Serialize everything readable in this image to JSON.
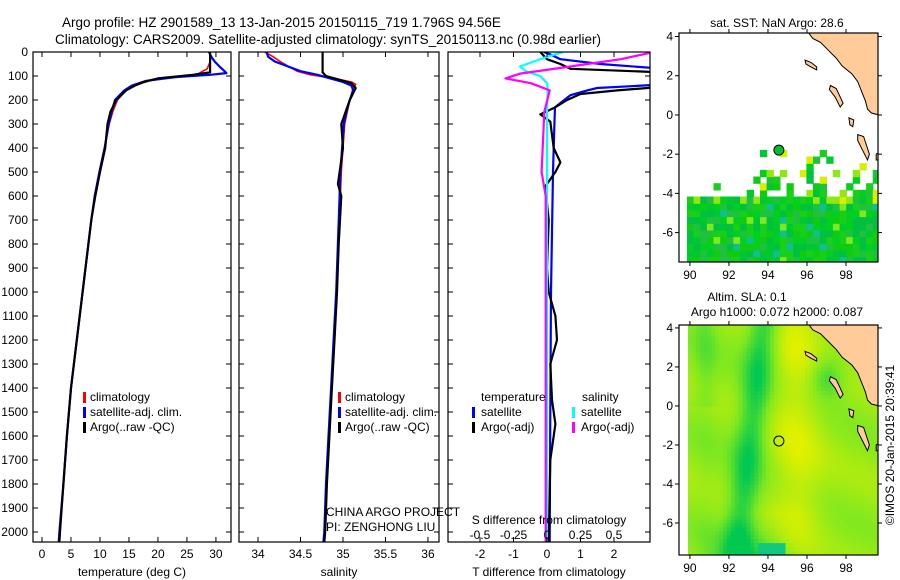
{
  "title_line1": "Argo profile: HZ 2901589_13 13-Jan-2015 20150115_719 1.796S 94.56E",
  "title_line2": "Climatology: CARS2009. Satellite-adjusted climatology: synTS_20150113.nc (0.98d earlier)",
  "credit_line1": "CHINA ARGO PROJECT",
  "credit_line2": "PI: ZENGHONG LIU",
  "timestamp": "©IMOS 20-Jan-2015 20:39:41",
  "colors": {
    "climatology": "#ff0000",
    "satellite": "#0000ff",
    "argo": "#000000",
    "sal_satellite": "#00ffff",
    "sal_argo": "#ff00ff",
    "land": "#ffcc99",
    "sla_low": "#00c850",
    "sla_mid": "#80e820",
    "sla_high": "#e0f000"
  },
  "chart_data": [
    {
      "type": "line",
      "title": "",
      "xlabel": "temperature (deg C)",
      "ylabel": "",
      "xlim": [
        -1.55,
        32.6
      ],
      "ylim": [
        2040,
        0
      ],
      "xticks": [
        0,
        5,
        10,
        15,
        20,
        25,
        30
      ],
      "yticks": [
        0,
        100,
        200,
        300,
        400,
        500,
        600,
        700,
        800,
        900,
        1000,
        1100,
        1200,
        1300,
        1400,
        1500,
        1600,
        1700,
        1800,
        1900,
        2000
      ],
      "legend": [
        {
          "label": "climatology",
          "color": "#ff0000"
        },
        {
          "label": "satellite-adj. clim.",
          "color": "#0000ff"
        },
        {
          "label": "Argo(..raw -QC)",
          "color": "#000000"
        }
      ],
      "series": [
        {
          "name": "climatology",
          "color": "#ff0000",
          "depth": [
            0,
            40,
            70,
            90,
            100,
            110,
            120,
            140,
            160,
            200,
            250,
            300,
            400,
            500,
            600,
            700,
            800,
            900,
            1000,
            1200,
            1400,
            1600,
            1800,
            2000,
            2040
          ],
          "x": [
            29.0,
            29.0,
            28.5,
            27.0,
            25.0,
            21.0,
            18.5,
            16.0,
            14.5,
            13.0,
            12.2,
            11.6,
            10.8,
            9.9,
            9.1,
            8.5,
            8.0,
            7.5,
            7.0,
            6.0,
            5.0,
            4.3,
            3.7,
            3.0,
            2.9
          ]
        },
        {
          "name": "satellite-adj. clim.",
          "color": "#0000ff",
          "depth": [
            0,
            20,
            40,
            60,
            80,
            88,
            95,
            105,
            120,
            140,
            160,
            200,
            250,
            300,
            400,
            500,
            600,
            700,
            800,
            900,
            1000,
            1200,
            1400,
            1600,
            1800,
            2000,
            2040
          ],
          "x": [
            28.8,
            29.2,
            29.8,
            30.6,
            31.5,
            31.8,
            29.0,
            23.0,
            18.0,
            15.5,
            14.2,
            12.6,
            12.0,
            11.5,
            10.8,
            9.9,
            9.1,
            8.5,
            8.0,
            7.5,
            7.0,
            6.0,
            5.0,
            4.3,
            3.7,
            3.0,
            2.9
          ]
        },
        {
          "name": "Argo(..raw -QC)",
          "color": "#000000",
          "depth": [
            0,
            85,
            95,
            110,
            125,
            140,
            160,
            200,
            250,
            300,
            400,
            500,
            600,
            700,
            800,
            900,
            1000,
            1200,
            1400,
            1600,
            1800,
            2000,
            2040
          ],
          "x": [
            29.0,
            29.0,
            26.0,
            20.0,
            17.5,
            16.0,
            14.5,
            12.8,
            11.8,
            11.3,
            10.9,
            10.0,
            9.2,
            8.5,
            8.0,
            7.5,
            7.0,
            6.0,
            5.0,
            4.3,
            3.7,
            3.1,
            3.0
          ]
        }
      ]
    },
    {
      "type": "line",
      "xlabel": "salinity",
      "xlim": [
        33.776,
        36.13
      ],
      "ylim": [
        2040,
        0
      ],
      "xticks": [
        34,
        34.5,
        35,
        35.5,
        36
      ],
      "legend": [
        {
          "label": "climatology",
          "color": "#ff0000"
        },
        {
          "label": "satellite-adj. clim.",
          "color": "#0000ff"
        },
        {
          "label": "Argo(..raw -QC)",
          "color": "#000000"
        }
      ],
      "series": [
        {
          "name": "climatology",
          "color": "#ff0000",
          "depth": [
            0,
            20,
            40,
            60,
            80,
            95,
            110,
            125,
            135,
            150,
            200,
            250,
            300,
            400,
            500,
            600,
            800,
            1000,
            1200,
            1400,
            1600,
            1800,
            2000,
            2040
          ],
          "x": [
            34.08,
            34.18,
            34.26,
            34.36,
            34.46,
            34.62,
            34.9,
            35.1,
            35.15,
            35.12,
            35.08,
            35.05,
            35.02,
            35.0,
            34.98,
            34.97,
            34.95,
            34.93,
            34.9,
            34.87,
            34.84,
            34.81,
            34.79,
            34.78
          ]
        },
        {
          "name": "satellite-adj. clim.",
          "color": "#0000ff",
          "depth": [
            0,
            20,
            40,
            60,
            80,
            95,
            110,
            125,
            140,
            160,
            200,
            250,
            300,
            400,
            500,
            600,
            800,
            1000,
            1200,
            1400,
            1600,
            1800,
            2000,
            2040
          ],
          "x": [
            34.1,
            34.12,
            34.2,
            34.35,
            34.5,
            34.7,
            34.85,
            35.0,
            35.1,
            35.12,
            35.08,
            35.04,
            35.01,
            34.99,
            34.97,
            34.96,
            34.94,
            34.92,
            34.89,
            34.86,
            34.83,
            34.8,
            34.78,
            34.77
          ]
        },
        {
          "name": "Argo(..raw -QC)",
          "color": "#000000",
          "depth": [
            0,
            85,
            100,
            115,
            130,
            150,
            200,
            280,
            300,
            400,
            550,
            600,
            800,
            1000,
            1200,
            1400,
            1600,
            1800,
            2000,
            2040
          ],
          "x": [
            34.76,
            34.76,
            34.8,
            34.95,
            35.1,
            35.15,
            35.08,
            35.0,
            34.98,
            35.0,
            34.94,
            34.98,
            34.95,
            34.93,
            34.9,
            34.87,
            34.84,
            34.81,
            34.79,
            34.78
          ]
        }
      ]
    },
    {
      "type": "line",
      "xlabel": "T difference from climatology",
      "xlabel2": "S difference from climatology",
      "xlim": [
        -2.955,
        3.075
      ],
      "xlim2": [
        -0.739,
        0.769
      ],
      "ylim": [
        2040,
        0
      ],
      "xticks": [
        -2,
        -1,
        0,
        1,
        2
      ],
      "xticks2": [
        -0.5,
        -0.25,
        0,
        0.25,
        0.5
      ],
      "legend_headers": [
        "temperature",
        "salinity"
      ],
      "legend": [
        {
          "label": "satellite",
          "color": "#0000ff",
          "group": "temperature"
        },
        {
          "label": "Argo(-adj)",
          "color": "#000000",
          "group": "temperature"
        },
        {
          "label": "satellite",
          "color": "#00ffff",
          "group": "salinity"
        },
        {
          "label": "Argo(-adj)",
          "color": "#ff00ff",
          "group": "salinity"
        }
      ],
      "series": [
        {
          "name": "T satellite",
          "axis": "T",
          "color": "#0000ff",
          "depth": [
            0,
            10,
            30,
            50,
            70,
            85,
            110,
            135,
            150,
            160,
            180,
            230,
            300,
            500,
            1000,
            1500,
            2040
          ],
          "x": [
            -0.1,
            0.1,
            0.4,
            1.6,
            3.5,
            4,
            4,
            3.5,
            1.5,
            1.2,
            0.7,
            0.24,
            0.22,
            0.18,
            0.12,
            0.1,
            0.08
          ]
        },
        {
          "name": "T Argo(-adj)",
          "axis": "T",
          "color": "#000000",
          "depth": [
            0,
            30,
            50,
            70,
            85,
            100,
            130,
            150,
            160,
            175,
            200,
            230,
            260,
            290,
            400,
            460,
            500,
            560,
            700,
            900,
            1000,
            1100,
            1200,
            1300,
            1450,
            1550,
            1700,
            2040
          ],
          "x": [
            -0.2,
            0,
            0.4,
            0.7,
            3.5,
            4,
            4,
            3,
            2.1,
            1,
            0.6,
            0.25,
            -0.2,
            0.1,
            0.2,
            0.4,
            0.25,
            -0.05,
            0.05,
            0.0,
            0.05,
            0.25,
            0.3,
            0.1,
            0.15,
            0.25,
            0.1,
            0.05
          ]
        },
        {
          "name": "S satellite",
          "axis": "S",
          "color": "#00ffff",
          "depth": [
            0,
            20,
            40,
            60,
            80,
            100,
            130,
            160,
            250,
            2040
          ],
          "x": [
            0.12,
            0.0,
            -0.1,
            -0.2,
            -0.16,
            -0.05,
            0.0,
            0.005,
            0.0,
            0.0
          ]
        },
        {
          "name": "S Argo(-adj)",
          "axis": "S",
          "color": "#ff00ff",
          "depth": [
            0,
            30,
            60,
            90,
            110,
            130,
            160,
            250,
            500,
            600,
            1000,
            2040
          ],
          "x": [
            0.8,
            0.55,
            0.18,
            -0.2,
            -0.31,
            -0.12,
            0.02,
            -0.02,
            -0.04,
            -0.01,
            -0.01,
            -0.01
          ]
        }
      ]
    },
    {
      "type": "heatmap",
      "title": "sat. SST: NaN Argo: 28.6",
      "lon_range": [
        89.44,
        99.64
      ],
      "lat_range": [
        -7.5,
        4.18
      ],
      "xticks": [
        90,
        92,
        94,
        96,
        98
      ],
      "yticks": [
        4,
        2,
        0,
        -2,
        -4,
        -6
      ],
      "argo_position": {
        "lon": 94.56,
        "lat": -1.796
      }
    },
    {
      "type": "heatmap",
      "title": "Altim. SLA: 0.1",
      "subtitle": "Argo h1000: 0.072 h2000: 0.087",
      "lon_range": [
        89.44,
        99.64
      ],
      "lat_range": [
        -7.64,
        4.15
      ],
      "xticks": [
        90,
        92,
        94,
        96,
        98
      ],
      "yticks": [
        4,
        2,
        0,
        -2,
        -4,
        -6
      ],
      "argo_position": {
        "lon": 94.56,
        "lat": -1.796
      }
    }
  ]
}
